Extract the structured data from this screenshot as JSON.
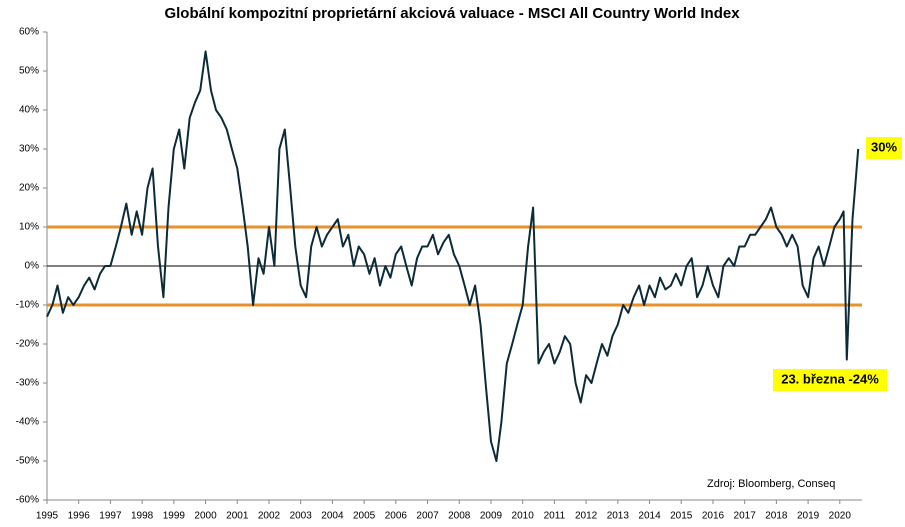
{
  "chart_data": {
    "type": "line",
    "title": "Globální kompozitní proprietární akciová valuace - MSCI All Country World Index",
    "annotations": [
      "30%",
      "23. března -24%",
      "Zdroj: Bloomberg, Conseq"
    ],
    "x": [
      1995,
      1995.17,
      1995.33,
      1995.5,
      1995.67,
      1995.83,
      1996,
      1996.17,
      1996.33,
      1996.5,
      1996.67,
      1996.83,
      1997,
      1997.17,
      1997.33,
      1997.5,
      1997.67,
      1997.83,
      1998,
      1998.17,
      1998.33,
      1998.5,
      1998.67,
      1998.83,
      1999,
      1999.17,
      1999.33,
      1999.5,
      1999.67,
      1999.83,
      2000,
      2000.17,
      2000.33,
      2000.5,
      2000.67,
      2000.83,
      2001,
      2001.17,
      2001.33,
      2001.5,
      2001.67,
      2001.83,
      2002,
      2002.17,
      2002.33,
      2002.5,
      2002.67,
      2002.83,
      2003,
      2003.17,
      2003.33,
      2003.5,
      2003.67,
      2003.83,
      2004,
      2004.17,
      2004.33,
      2004.5,
      2004.67,
      2004.83,
      2005,
      2005.17,
      2005.33,
      2005.5,
      2005.67,
      2005.83,
      2006,
      2006.17,
      2006.33,
      2006.5,
      2006.67,
      2006.83,
      2007,
      2007.17,
      2007.33,
      2007.5,
      2007.67,
      2007.83,
      2008,
      2008.17,
      2008.33,
      2008.5,
      2008.67,
      2008.83,
      2009,
      2009.17,
      2009.33,
      2009.5,
      2009.67,
      2009.83,
      2010,
      2010.17,
      2010.33,
      2010.5,
      2010.67,
      2010.83,
      2011,
      2011.17,
      2011.33,
      2011.5,
      2011.67,
      2011.83,
      2012,
      2012.17,
      2012.33,
      2012.5,
      2012.67,
      2012.83,
      2013,
      2013.17,
      2013.33,
      2013.5,
      2013.67,
      2013.83,
      2014,
      2014.17,
      2014.33,
      2014.5,
      2014.67,
      2014.83,
      2015,
      2015.17,
      2015.33,
      2015.5,
      2015.67,
      2015.83,
      2016,
      2016.17,
      2016.33,
      2016.5,
      2016.67,
      2016.83,
      2017,
      2017.17,
      2017.33,
      2017.5,
      2017.67,
      2017.83,
      2018,
      2018.17,
      2018.33,
      2018.5,
      2018.67,
      2018.83,
      2019,
      2019.17,
      2019.33,
      2019.5,
      2019.67,
      2019.83,
      2020,
      2020.12,
      2020.22,
      2020.3,
      2020.4,
      2020.5,
      2020.58
    ],
    "series": [
      {
        "name": "MSCI ACWI",
        "color": "#0d2b36",
        "values": [
          -13,
          -10,
          -5,
          -12,
          -8,
          -10,
          -8,
          -5,
          -3,
          -6,
          -2,
          0,
          0,
          5,
          10,
          16,
          8,
          14,
          8,
          20,
          25,
          5,
          -8,
          15,
          30,
          35,
          25,
          38,
          42,
          45,
          55,
          45,
          40,
          38,
          35,
          30,
          25,
          15,
          5,
          -10,
          2,
          -2,
          10,
          0,
          30,
          35,
          20,
          5,
          -5,
          -8,
          5,
          10,
          5,
          8,
          10,
          12,
          5,
          8,
          0,
          5,
          3,
          -2,
          2,
          -5,
          0,
          -3,
          3,
          5,
          0,
          -5,
          2,
          5,
          5,
          8,
          3,
          6,
          8,
          3,
          0,
          -5,
          -10,
          -5,
          -15,
          -30,
          -45,
          -50,
          -40,
          -25,
          -20,
          -15,
          -10,
          5,
          15,
          -25,
          -22,
          -20,
          -25,
          -22,
          -18,
          -20,
          -30,
          -35,
          -28,
          -30,
          -25,
          -20,
          -23,
          -18,
          -15,
          -10,
          -12,
          -8,
          -5,
          -10,
          -5,
          -8,
          -3,
          -6,
          -5,
          -2,
          -5,
          0,
          2,
          -8,
          -5,
          0,
          -5,
          -8,
          0,
          2,
          0,
          5,
          5,
          8,
          8,
          10,
          12,
          15,
          10,
          8,
          5,
          8,
          5,
          -5,
          -8,
          2,
          5,
          0,
          5,
          10,
          12,
          14,
          -24,
          -8,
          12,
          22,
          30
        ]
      }
    ],
    "reference_lines": [
      {
        "value": 10,
        "color": "#e8902a"
      },
      {
        "value": -10,
        "color": "#e8902a"
      }
    ],
    "xlim": [
      1995,
      2020.7
    ],
    "xticks": [
      1995,
      1996,
      1997,
      1998,
      1999,
      2000,
      2001,
      2002,
      2003,
      2004,
      2005,
      2006,
      2007,
      2008,
      2009,
      2010,
      2011,
      2012,
      2013,
      2014,
      2015,
      2016,
      2017,
      2018,
      2019,
      2020
    ],
    "ylim": [
      -60,
      60
    ],
    "yticks": [
      {
        "value": -60,
        "label": "-60%"
      },
      {
        "value": -50,
        "label": "-50%"
      },
      {
        "value": -40,
        "label": "-40%"
      },
      {
        "value": -30,
        "label": "-30%"
      },
      {
        "value": -20,
        "label": "-20%"
      },
      {
        "value": -10,
        "label": "-10%"
      },
      {
        "value": 0,
        "label": "0%"
      },
      {
        "value": 10,
        "label": "10%"
      },
      {
        "value": 20,
        "label": "20%"
      },
      {
        "value": 30,
        "label": "30%"
      },
      {
        "value": 40,
        "label": "40%"
      },
      {
        "value": 50,
        "label": "50%"
      },
      {
        "value": 60,
        "label": "60%"
      }
    ]
  }
}
